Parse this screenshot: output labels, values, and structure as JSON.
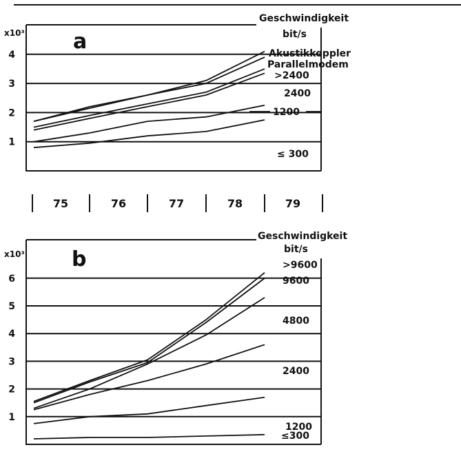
{
  "chart_data": [
    {
      "type": "line",
      "panel_letter": "a",
      "multiplier_label": "x10³",
      "legend_title": "Geschwindigkeit",
      "legend_unit": "bit/s",
      "x": [
        "75",
        "76",
        "77",
        "78",
        "79"
      ],
      "ylim": [
        0,
        4
      ],
      "yticks": [
        "1",
        "2",
        "3",
        "4"
      ],
      "series": [
        {
          "name": "Akustikkoppler",
          "values": [
            1.7,
            2.2,
            2.6,
            3.1,
            4.1
          ]
        },
        {
          "name": "Parallelmodem",
          "values": [
            1.7,
            2.15,
            2.6,
            3.0,
            3.9
          ]
        },
        {
          "name": ">2400",
          "values": [
            1.5,
            1.9,
            2.3,
            2.7,
            3.5
          ]
        },
        {
          "name": "2400",
          "values": [
            1.4,
            1.8,
            2.2,
            2.6,
            3.35
          ]
        },
        {
          "name": "1200",
          "values": [
            1.0,
            1.3,
            1.7,
            1.85,
            2.25
          ]
        },
        {
          "name": "≤ 300",
          "values": [
            0.8,
            0.95,
            1.2,
            1.35,
            1.75
          ]
        }
      ]
    },
    {
      "type": "line",
      "panel_letter": "b",
      "multiplier_label": "x10³",
      "legend_title": "Geschwindigkeit",
      "legend_unit": "bit/s",
      "x": [
        "75",
        "76",
        "77",
        "78",
        "79"
      ],
      "ylim": [
        0,
        6
      ],
      "yticks": [
        "1",
        "2",
        "3",
        "4",
        "5",
        "6"
      ],
      "series": [
        {
          "name": ">9600",
          "values": [
            1.55,
            2.3,
            3.05,
            4.5,
            6.2
          ]
        },
        {
          "name": "9600",
          "values": [
            1.5,
            2.25,
            2.95,
            4.4,
            6.0
          ]
        },
        {
          "name": "4800",
          "values": [
            1.3,
            2.0,
            2.9,
            3.95,
            5.3
          ]
        },
        {
          "name": "2400",
          "values": [
            1.25,
            1.8,
            2.3,
            2.9,
            3.6
          ]
        },
        {
          "name": "1200",
          "values": [
            0.75,
            1.0,
            1.1,
            1.4,
            1.7
          ]
        },
        {
          "name": "≤300",
          "values": [
            0.2,
            0.25,
            0.25,
            0.3,
            0.35
          ]
        }
      ]
    }
  ]
}
